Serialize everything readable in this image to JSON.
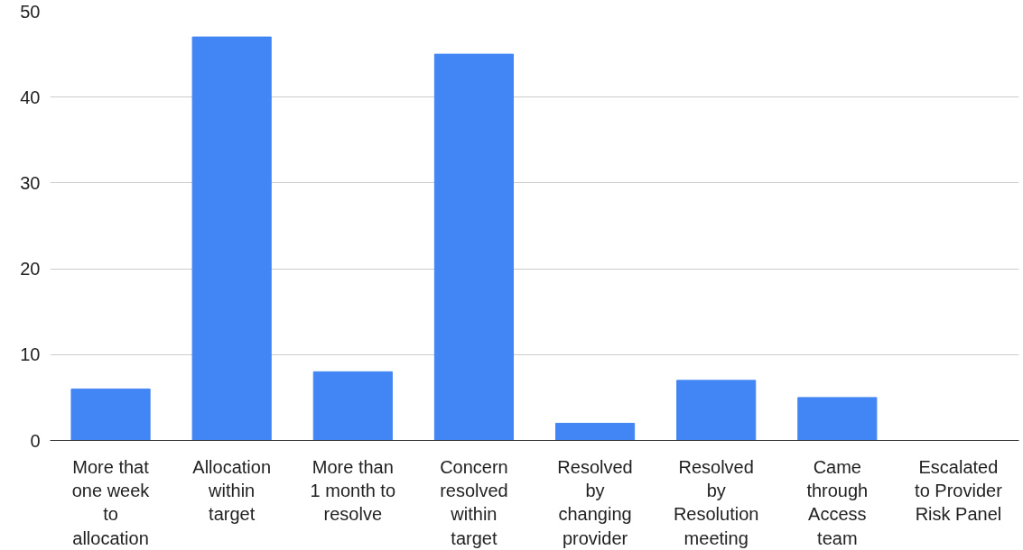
{
  "chart_data": {
    "type": "bar",
    "categories": [
      "More that\none week\nto\nallocation",
      "Allocation\nwithin\ntarget",
      "More than\n1 month to\nresolve",
      "Concern\nresolved\nwithin\ntarget",
      "Resolved\nby\nchanging\nprovider",
      "Resolved\nby\nResolution\nmeeting",
      "Came\nthrough\nAccess\nteam",
      "Escalated\nto Provider\nRisk Panel"
    ],
    "values": [
      6,
      47,
      8,
      45,
      2,
      7,
      5,
      0
    ],
    "color": "#4285f4",
    "ylim": [
      0,
      50
    ],
    "yticks": [
      0,
      10,
      20,
      30,
      40,
      50
    ],
    "grid": "y"
  }
}
